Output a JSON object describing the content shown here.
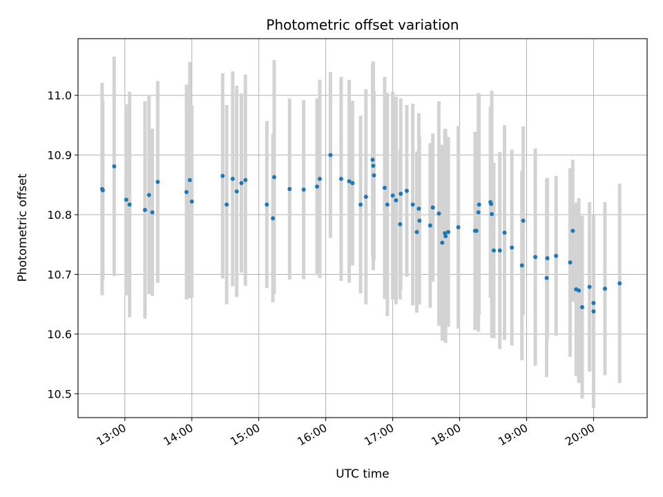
{
  "chart_data": {
    "type": "scatter",
    "title": "Photometric offset variation",
    "xlabel": "UTC time",
    "ylabel": "Photometric offset",
    "x_unit": "hours (UTC, decimal)",
    "xlim": [
      12.3,
      20.8
    ],
    "ylim": [
      10.46,
      11.095
    ],
    "xticks": [
      13,
      14,
      15,
      16,
      17,
      18,
      19,
      20
    ],
    "xtick_labels": [
      "13:00",
      "14:00",
      "15:00",
      "16:00",
      "17:00",
      "18:00",
      "19:00",
      "20:00"
    ],
    "yticks": [
      10.5,
      10.6,
      10.7,
      10.8,
      10.9,
      11.0
    ],
    "ytick_labels": [
      "10.5",
      "10.6",
      "10.7",
      "10.8",
      "10.9",
      "11.0"
    ],
    "grid": true,
    "legend": "none",
    "colors": {
      "point": "#1f77b4",
      "errorbar": "#d3d3d3",
      "grid": "#b0b0b0",
      "axes": "#000000"
    },
    "series": [
      {
        "x": [
          12.66,
          12.67,
          12.84,
          13.02,
          13.07,
          13.3,
          13.36,
          13.41,
          13.49,
          13.92,
          13.97,
          14.0,
          14.46,
          14.52,
          14.61,
          14.67,
          14.74,
          14.8,
          15.12,
          15.21,
          15.23,
          15.46,
          15.67,
          15.87,
          15.91,
          16.07,
          16.23,
          16.35,
          16.4,
          16.52,
          16.6,
          16.7,
          16.71,
          16.72,
          16.88,
          16.92,
          17.0,
          17.05,
          17.11,
          17.12,
          17.21,
          17.3,
          17.36,
          17.39,
          17.4,
          17.56,
          17.6,
          17.69,
          17.74,
          17.78,
          17.79,
          17.83,
          17.98,
          18.23,
          18.25,
          18.28,
          18.29,
          18.46,
          18.47,
          18.48,
          18.51,
          18.6,
          18.67,
          18.78,
          18.93,
          18.95,
          19.13,
          19.3,
          19.31,
          19.44,
          19.65,
          19.69,
          19.74,
          19.78,
          19.83,
          19.94,
          20.0,
          20.0,
          20.17,
          20.39
        ],
        "y": [
          10.843,
          10.841,
          10.881,
          10.825,
          10.817,
          10.808,
          10.833,
          10.804,
          10.855,
          10.838,
          10.858,
          10.822,
          10.865,
          10.817,
          10.86,
          10.839,
          10.853,
          10.858,
          10.817,
          10.794,
          10.863,
          10.843,
          10.842,
          10.847,
          10.86,
          10.9,
          10.86,
          10.856,
          10.853,
          10.817,
          10.83,
          10.892,
          10.882,
          10.866,
          10.845,
          10.817,
          10.832,
          10.824,
          10.784,
          10.835,
          10.84,
          10.817,
          10.771,
          10.81,
          10.79,
          10.782,
          10.812,
          10.802,
          10.753,
          10.769,
          10.764,
          10.771,
          10.779,
          10.773,
          10.773,
          10.804,
          10.817,
          10.821,
          10.818,
          10.801,
          10.74,
          10.74,
          10.77,
          10.745,
          10.715,
          10.79,
          10.729,
          10.694,
          10.727,
          10.731,
          10.72,
          10.773,
          10.675,
          10.673,
          10.645,
          10.679,
          10.652,
          10.638,
          10.676,
          10.685
        ],
        "err": [
          0.178,
          0.15,
          0.184,
          0.16,
          0.189,
          0.182,
          0.166,
          0.14,
          0.169,
          0.18,
          0.198,
          0.161,
          0.172,
          0.167,
          0.18,
          0.177,
          0.15,
          0.177,
          0.14,
          0.141,
          0.196,
          0.152,
          0.15,
          0.148,
          0.166,
          0.139,
          0.171,
          0.17,
          0.138,
          0.149,
          0.18,
          0.161,
          0.175,
          0.141,
          0.186,
          0.187,
          0.174,
          0.174,
          0.126,
          0.16,
          0.144,
          0.169,
          0.135,
          0.16,
          0.14,
          0.138,
          0.124,
          0.188,
          0.164,
          0.175,
          0.179,
          0.159,
          0.17,
          0.166,
          0.148,
          0.2,
          0.185,
          0.16,
          0.148,
          0.207,
          0.147,
          0.165,
          0.18,
          0.164,
          0.159,
          0.158,
          0.182,
          0.166,
          0.135,
          0.134,
          0.158,
          0.119,
          0.145,
          0.155,
          0.153,
          0.142,
          0.122,
          0.162,
          0.145,
          0.167
        ]
      }
    ]
  }
}
